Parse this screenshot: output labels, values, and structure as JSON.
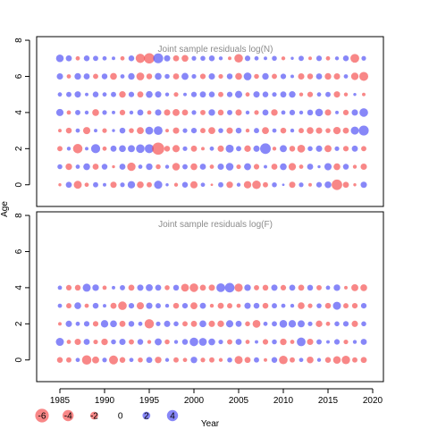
{
  "chart_data": [
    {
      "type": "scatter",
      "title": "Joint sample residuals log(N)",
      "ylim": [
        -1.2,
        8.2
      ],
      "yticks": [
        0,
        2,
        4,
        6,
        8
      ],
      "ages": [
        0,
        1,
        2,
        3,
        4,
        5,
        6,
        7
      ],
      "years_start": 1985,
      "years_end": 2019,
      "residuals": [
        [
          -0.3,
          1.2,
          -2.1,
          -0.6,
          0.9,
          0.4,
          -1.3,
          0.7,
          1.8,
          -1.5,
          -0.9,
          2.2,
          0.3,
          -0.5,
          1.1,
          -1.7,
          0.6,
          -0.2,
          0.9,
          -1.4,
          0.5,
          -1.8,
          -2.4,
          -0.9,
          0.8,
          0.2,
          -1.3,
          0.7,
          -0.4,
          1.0,
          1.5,
          -3.6,
          -1.2,
          -0.3,
          1.3
        ],
        [
          0.8,
          -1.4,
          0.6,
          1.5,
          -1.2,
          1.1,
          -0.3,
          1.2,
          -2.3,
          0.6,
          1.4,
          -0.8,
          0.5,
          -1.9,
          0.9,
          -1.5,
          1.2,
          -0.6,
          1.3,
          1.9,
          -0.7,
          1.6,
          -1.0,
          0.4,
          -1.2,
          1.5,
          -1.8,
          -0.6,
          1.2,
          0.3,
          1.7,
          -1.5,
          1.1,
          -0.5,
          -1.3
        ],
        [
          -0.9,
          0.5,
          -2.9,
          0.4,
          2.7,
          -0.6,
          1.2,
          1.5,
          1.6,
          2.4,
          2.6,
          -4.8,
          -1.1,
          -1.7,
          0.7,
          -1.2,
          -0.4,
          0.6,
          -1.3,
          2.1,
          0.9,
          -1.4,
          1.3,
          3.7,
          -0.5,
          1.6,
          -1.1,
          -2.0,
          0.8,
          1.3,
          -1.6,
          0.7,
          -1.0,
          1.2,
          -0.9
        ],
        [
          -0.4,
          -1.1,
          0.6,
          -1.7,
          0.4,
          -0.7,
          0.3,
          1.1,
          -0.8,
          -1.6,
          2.0,
          2.5,
          -0.4,
          -1.3,
          0.7,
          1.0,
          -0.9,
          -1.6,
          0.8,
          -1.3,
          1.1,
          -0.5,
          0.9,
          -1.6,
          0.6,
          -1.1,
          0.5,
          -0.9,
          -1.5,
          -1.3,
          -0.8,
          -1.8,
          -1.2,
          2.1,
          3.2
        ],
        [
          1.7,
          -0.6,
          0.9,
          0.5,
          -1.5,
          0.7,
          0.4,
          -1.0,
          0.5,
          1.2,
          -0.6,
          1.3,
          -1.3,
          -1.6,
          -1.2,
          0.7,
          -0.9,
          1.4,
          -1.1,
          0.9,
          -1.3,
          0.5,
          -0.7,
          1.2,
          -1.4,
          0.6,
          1.0,
          0.5,
          1.1,
          1.9,
          -1.3,
          0.4,
          -1.0,
          1.3,
          2.4
        ],
        [
          0.6,
          0.9,
          1.3,
          0.4,
          1.1,
          0.6,
          0.9,
          -1.4,
          1.0,
          -1.2,
          1.5,
          1.3,
          0.5,
          -0.7,
          0.4,
          1.0,
          1.2,
          1.1,
          -0.9,
          1.0,
          1.7,
          -0.6,
          1.3,
          1.1,
          0.7,
          1.2,
          1.4,
          -0.5,
          -1.0,
          0.6,
          0.9,
          -1.3,
          -0.5,
          0.3,
          -0.4
        ],
        [
          1.3,
          -0.6,
          1.4,
          1.2,
          -0.9,
          1.1,
          -1.5,
          0.6,
          1.4,
          -2.0,
          -1.1,
          1.5,
          0.8,
          -1.2,
          1.6,
          0.7,
          -1.0,
          1.3,
          -0.7,
          1.1,
          -1.5,
          2.0,
          -0.8,
          1.4,
          -0.9,
          1.0,
          0.4,
          -1.3,
          -1.1,
          1.2,
          -1.4,
          -1.3,
          0.6,
          -1.8,
          -2.6
        ],
        [
          1.9,
          1.2,
          -0.6,
          1.1,
          0.9,
          0.6,
          0.4,
          -0.6,
          1.1,
          -2.8,
          -3.5,
          3.2,
          1.3,
          -1.2,
          -1.5,
          0.7,
          0.8,
          1.1,
          0.5,
          -0.4,
          -2.4,
          1.0,
          0.6,
          0.4,
          0.8,
          -0.5,
          0.3,
          0.9,
          -0.4,
          1.0,
          -0.6,
          0.5,
          1.1,
          -2.5,
          0.7
        ]
      ]
    },
    {
      "type": "scatter",
      "title": "Joint sample residuals log(F)",
      "ylim": [
        -1.2,
        8.2
      ],
      "yticks": [
        0,
        2,
        4,
        6,
        8
      ],
      "ages": [
        0,
        1,
        2,
        3,
        4
      ],
      "years_start": 1985,
      "years_end": 2019,
      "residuals": [
        [
          -1.1,
          -0.9,
          0.6,
          -2.9,
          -1.6,
          0.7,
          -2.6,
          -1.1,
          0.6,
          -0.8,
          1.2,
          -1.4,
          0.5,
          -0.9,
          -0.6,
          1.4,
          -0.7,
          -0.9,
          -0.5,
          0.8,
          -2.1,
          -1.2,
          0.9,
          -0.4,
          1.1,
          -2.4,
          -0.9,
          0.6,
          -1.5,
          0.5,
          -1.1,
          -1.9,
          -2.3,
          -0.9,
          -1.2
        ],
        [
          2.1,
          -0.6,
          -1.3,
          1.2,
          -0.7,
          -1.4,
          0.8,
          1.3,
          -0.9,
          1.1,
          -0.5,
          1.6,
          -0.8,
          0.5,
          1.1,
          2.4,
          2.0,
          1.5,
          0.7,
          -0.9,
          1.2,
          -0.6,
          0.4,
          -1.0,
          0.8,
          -1.4,
          -0.6,
          2.5,
          -1.3,
          0.9,
          0.4,
          1.0,
          -0.7,
          0.5,
          1.2
        ],
        [
          -0.4,
          1.3,
          0.6,
          1.0,
          -1.0,
          1.8,
          1.5,
          -1.2,
          1.1,
          0.6,
          -2.8,
          0.7,
          1.3,
          0.8,
          -0.9,
          -1.2,
          1.5,
          -1.3,
          -1.4,
          1.7,
          1.2,
          -0.8,
          -2.0,
          0.6,
          0.9,
          1.9,
          1.8,
          1.6,
          0.7,
          -1.4,
          -0.6,
          0.8,
          1.0,
          -1.3,
          0.8
        ],
        [
          0.6,
          -0.9,
          1.5,
          -0.6,
          1.1,
          0.4,
          -1.2,
          -2.4,
          1.0,
          -1.7,
          1.3,
          0.9,
          0.5,
          -1.1,
          1.0,
          -1.6,
          1.2,
          -0.5,
          -1.2,
          -0.9,
          -0.6,
          1.3,
          1.1,
          -1.1,
          0.9,
          0.6,
          0.5,
          -1.5,
          -0.7,
          0.8,
          -1.1,
          2.1,
          -0.9,
          -1.0,
          1.0
        ],
        [
          0.6,
          -1.0,
          -1.1,
          2.1,
          1.4,
          -0.6,
          0.4,
          0.9,
          -1.2,
          1.3,
          1.6,
          1.2,
          -0.8,
          1.1,
          -2.0,
          -2.4,
          -1.2,
          -1.3,
          2.5,
          3.0,
          -2.2,
          1.4,
          -0.9,
          -1.1,
          1.3,
          -1.0,
          1.2,
          -1.2,
          1.1,
          -0.9,
          0.6,
          1.4,
          -0.4,
          -1.6,
          -1.5
        ]
      ]
    }
  ],
  "x_axis": {
    "label": "Year",
    "xlim": [
      1982.4,
      2021.2
    ],
    "ticks": [
      1985,
      1990,
      1995,
      2000,
      2005,
      2010,
      2015,
      2020
    ],
    "tick_labels": [
      "1985",
      "1990",
      "1995",
      "2000",
      "2005",
      "2010",
      "2015",
      "2020"
    ]
  },
  "y_axis_label": "Age",
  "legend": {
    "values": [
      -6,
      -4,
      -2,
      0,
      2,
      4
    ],
    "labels": [
      "-6",
      "-4",
      "-2",
      "0",
      "2",
      "4"
    ]
  },
  "colors": {
    "positive": "#4b4bf5",
    "negative": "#f54b4b",
    "positive_fill": "rgba(70,70,245,0.65)",
    "negative_fill": "rgba(245,70,70,0.65)",
    "title": "#8c8c8c"
  },
  "marker_scale": {
    "type": "sqrt_abs_residual"
  }
}
